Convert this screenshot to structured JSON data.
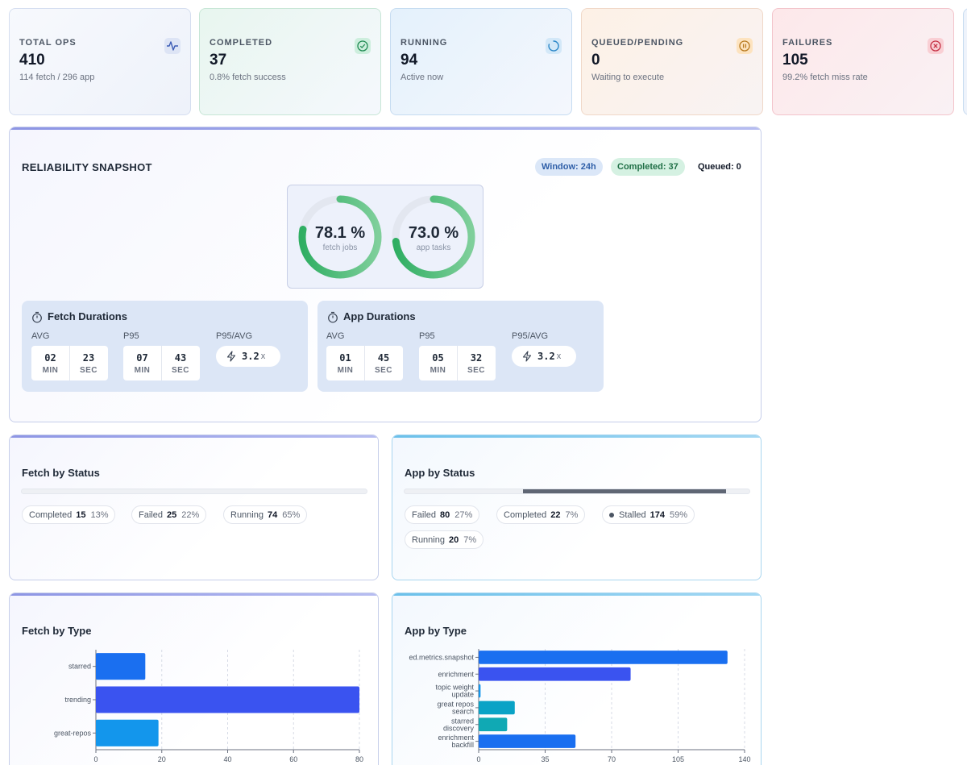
{
  "kpis": {
    "total": {
      "label": "TOTAL OPS",
      "value": "410",
      "sub": "114 fetch / 296 app",
      "icon": "activity-icon"
    },
    "completed": {
      "label": "COMPLETED",
      "value": "37",
      "sub": "0.8% fetch success",
      "icon": "check-circle-icon"
    },
    "running": {
      "label": "RUNNING",
      "value": "94",
      "sub": "Active now",
      "icon": "loader-icon"
    },
    "queued": {
      "label": "QUEUED/PENDING",
      "value": "0",
      "sub": "Waiting to execute",
      "icon": "pause-circle-icon"
    },
    "failures": {
      "label": "FAILURES",
      "value": "105",
      "sub": "99.2% fetch miss rate",
      "icon": "x-circle-icon"
    }
  },
  "reliability": {
    "title": "RELIABILITY SNAPSHOT",
    "chips": {
      "window": "Window: 24h",
      "completed": "Completed: 37",
      "queued": "Queued: 0"
    },
    "gauges": [
      {
        "value": "78.1 %",
        "label": "fetch jobs",
        "fraction": 0.781
      },
      {
        "value": "73.0 %",
        "label": "app tasks",
        "fraction": 0.73
      }
    ],
    "fetch_durations": {
      "title": "Fetch Durations",
      "avg_label": "AVG",
      "p95_label": "P95",
      "ratio_label": "P95/AVG",
      "avg": {
        "min": "02",
        "sec": "23"
      },
      "p95": {
        "min": "07",
        "sec": "43"
      },
      "ratio": "3.2",
      "ratio_suffix": "x",
      "min_unit": "MIN",
      "sec_unit": "SEC"
    },
    "app_durations": {
      "title": "App Durations",
      "avg_label": "AVG",
      "p95_label": "P95",
      "ratio_label": "P95/AVG",
      "avg": {
        "min": "01",
        "sec": "45"
      },
      "p95": {
        "min": "05",
        "sec": "32"
      },
      "ratio": "3.2",
      "ratio_suffix": "x",
      "min_unit": "MIN",
      "sec_unit": "SEC"
    }
  },
  "fetch_status": {
    "title": "Fetch by Status",
    "items": [
      {
        "label": "Completed",
        "count": "15",
        "pct": "13%"
      },
      {
        "label": "Failed",
        "count": "25",
        "pct": "22%"
      },
      {
        "label": "Running",
        "count": "74",
        "pct": "65%"
      }
    ]
  },
  "app_status": {
    "title": "App by Status",
    "items": [
      {
        "label": "Failed",
        "count": "80",
        "pct": "27%"
      },
      {
        "label": "Completed",
        "count": "22",
        "pct": "7%"
      },
      {
        "label": "Stalled",
        "count": "174",
        "pct": "59%",
        "color": "#5f6674"
      },
      {
        "label": "Running",
        "count": "20",
        "pct": "7%"
      }
    ]
  },
  "chart_data": [
    {
      "type": "bar",
      "orientation": "horizontal",
      "title": "Fetch by Type",
      "categories": [
        "starred",
        "trending",
        "great-repos"
      ],
      "values": [
        15,
        80,
        19
      ],
      "xlim": [
        0,
        80
      ],
      "xticks": [
        "0",
        "20",
        "40",
        "60",
        "80"
      ],
      "grid": true,
      "colors": [
        "#1a6ff0",
        "#3a53f0",
        "#1396ec"
      ]
    },
    {
      "type": "bar",
      "orientation": "horizontal",
      "title": "App by Type",
      "categories": [
        [
          "ed.metrics.snapshot"
        ],
        [
          "enrichment"
        ],
        [
          "topic weight",
          "update"
        ],
        [
          "great repos",
          "search"
        ],
        [
          "starred",
          "discovery"
        ],
        [
          "enrichment",
          "backfill"
        ]
      ],
      "values": [
        131,
        80,
        1,
        19,
        15,
        51
      ],
      "xlim": [
        0,
        140
      ],
      "xticks": [
        "0",
        "35",
        "70",
        "105",
        "140"
      ],
      "grid": true,
      "colors": [
        "#1a6ff0",
        "#3a53f0",
        "#1396ec",
        "#0aa3c6",
        "#10a9b4",
        "#1a6ff0"
      ]
    }
  ]
}
